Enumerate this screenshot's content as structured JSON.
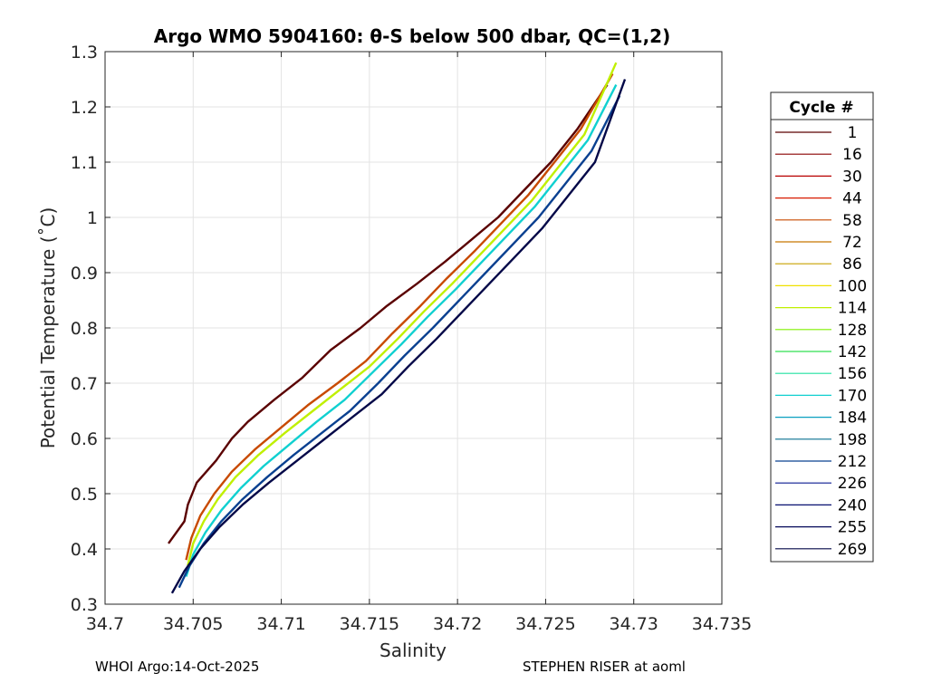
{
  "chart_data": {
    "type": "line",
    "title": "Argo WMO 5904160: θ-S below 500 dbar,  QC=(1,2)",
    "xlabel": "Salinity",
    "ylabel": "Potential Temperature (˚C)",
    "xlim": [
      34.7,
      34.735
    ],
    "ylim": [
      0.3,
      1.3
    ],
    "grid": true,
    "x_ticks": [
      34.7,
      34.705,
      34.71,
      34.715,
      34.72,
      34.725,
      34.73,
      34.735
    ],
    "x_tick_labels": [
      "34.7",
      "34.705",
      "34.71",
      "34.715",
      "34.72",
      "34.725",
      "34.73",
      "34.735"
    ],
    "y_ticks": [
      0.3,
      0.4,
      0.5,
      0.6,
      0.7,
      0.8,
      0.9,
      1.0,
      1.1,
      1.2,
      1.3
    ],
    "y_tick_labels": [
      "0.3",
      "0.4",
      "0.5",
      "0.6",
      "0.7",
      "0.8",
      "0.9",
      "1",
      "1.1",
      "1.2",
      "1.3"
    ],
    "legend": {
      "title": "Cycle #",
      "placement": "right-outside",
      "entries": [
        {
          "label": "1",
          "color": "#5a0000"
        },
        {
          "label": "16",
          "color": "#8a0000"
        },
        {
          "label": "30",
          "color": "#b80000"
        },
        {
          "label": "44",
          "color": "#d81a00"
        },
        {
          "label": "58",
          "color": "#c84a00"
        },
        {
          "label": "72",
          "color": "#c87800"
        },
        {
          "label": "86",
          "color": "#c8a000"
        },
        {
          "label": "100",
          "color": "#f0e000"
        },
        {
          "label": "114",
          "color": "#c0f000"
        },
        {
          "label": "128",
          "color": "#80f000"
        },
        {
          "label": "142",
          "color": "#30e050"
        },
        {
          "label": "156",
          "color": "#20e0a0"
        },
        {
          "label": "170",
          "color": "#10d0d0"
        },
        {
          "label": "184",
          "color": "#0aa0c0"
        },
        {
          "label": "198",
          "color": "#0a7090"
        },
        {
          "label": "212",
          "color": "#0a4090"
        },
        {
          "label": "226",
          "color": "#0a1a90"
        },
        {
          "label": "240",
          "color": "#081070"
        },
        {
          "label": "255",
          "color": "#060a5a"
        },
        {
          "label": "269",
          "color": "#040848"
        }
      ]
    },
    "series": [
      {
        "name": "1",
        "color": "#5a0000",
        "x": [
          34.7036,
          34.7045,
          34.7047,
          34.7052,
          34.7063,
          34.7072,
          34.7081,
          34.7096,
          34.7112,
          34.7128,
          34.7145,
          34.716,
          34.7177,
          34.7193,
          34.7208,
          34.7223,
          34.7238,
          34.7253,
          34.7268,
          34.7285
        ],
        "y": [
          0.41,
          0.45,
          0.48,
          0.52,
          0.56,
          0.6,
          0.63,
          0.67,
          0.71,
          0.76,
          0.8,
          0.84,
          0.88,
          0.92,
          0.96,
          1.0,
          1.05,
          1.1,
          1.16,
          1.24
        ]
      },
      {
        "name": "58",
        "color": "#c84a00",
        "x": [
          34.7046,
          34.7049,
          34.7054,
          34.7062,
          34.7072,
          34.7085,
          34.71,
          34.7115,
          34.7132,
          34.7148,
          34.7163,
          34.7179,
          34.7194,
          34.721,
          34.7225,
          34.724,
          34.7255,
          34.727,
          34.7288
        ],
        "y": [
          0.38,
          0.42,
          0.46,
          0.5,
          0.54,
          0.58,
          0.62,
          0.66,
          0.7,
          0.74,
          0.79,
          0.84,
          0.89,
          0.94,
          0.99,
          1.04,
          1.1,
          1.16,
          1.26
        ]
      },
      {
        "name": "114",
        "color": "#c0f000",
        "x": [
          34.7047,
          34.705,
          34.7056,
          34.7064,
          34.7074,
          34.7087,
          34.7102,
          34.7118,
          34.7134,
          34.715,
          34.7166,
          34.7181,
          34.7197,
          34.7212,
          34.7227,
          34.7242,
          34.7257,
          34.7272,
          34.729
        ],
        "y": [
          0.37,
          0.41,
          0.45,
          0.49,
          0.53,
          0.57,
          0.61,
          0.65,
          0.69,
          0.73,
          0.78,
          0.83,
          0.88,
          0.93,
          0.98,
          1.03,
          1.09,
          1.15,
          1.28
        ]
      },
      {
        "name": "170",
        "color": "#10d0d0",
        "x": [
          34.7046,
          34.705,
          34.7057,
          34.7066,
          34.7077,
          34.709,
          34.7105,
          34.712,
          34.7136,
          34.7152,
          34.7168,
          34.7183,
          34.7199,
          34.7214,
          34.7229,
          34.7244,
          34.7259,
          34.7274,
          34.729
        ],
        "y": [
          0.35,
          0.39,
          0.43,
          0.47,
          0.51,
          0.55,
          0.59,
          0.63,
          0.67,
          0.72,
          0.77,
          0.82,
          0.87,
          0.92,
          0.97,
          1.02,
          1.08,
          1.14,
          1.24
        ]
      },
      {
        "name": "212",
        "color": "#0a4090",
        "x": [
          34.7042,
          34.7048,
          34.7056,
          34.7066,
          34.7078,
          34.7092,
          34.7107,
          34.7123,
          34.7139,
          34.7155,
          34.717,
          34.7186,
          34.7201,
          34.7216,
          34.7231,
          34.7246,
          34.7261,
          34.7276,
          34.7292
        ],
        "y": [
          0.33,
          0.37,
          0.41,
          0.45,
          0.49,
          0.53,
          0.57,
          0.61,
          0.65,
          0.7,
          0.75,
          0.8,
          0.85,
          0.9,
          0.95,
          1.0,
          1.06,
          1.12,
          1.22
        ]
      },
      {
        "name": "269",
        "color": "#040848",
        "x": [
          34.7038,
          34.7045,
          34.7054,
          34.7065,
          34.7078,
          34.7093,
          34.7109,
          34.7125,
          34.7141,
          34.7157,
          34.7172,
          34.7188,
          34.7203,
          34.7218,
          34.7233,
          34.7248,
          34.7263,
          34.7278,
          34.7295
        ],
        "y": [
          0.32,
          0.36,
          0.4,
          0.44,
          0.48,
          0.52,
          0.56,
          0.6,
          0.64,
          0.68,
          0.73,
          0.78,
          0.83,
          0.88,
          0.93,
          0.98,
          1.04,
          1.1,
          1.25
        ]
      }
    ]
  },
  "footer": {
    "left": "WHOI Argo:14-Oct-2025",
    "right": "STEPHEN RISER at aoml"
  }
}
